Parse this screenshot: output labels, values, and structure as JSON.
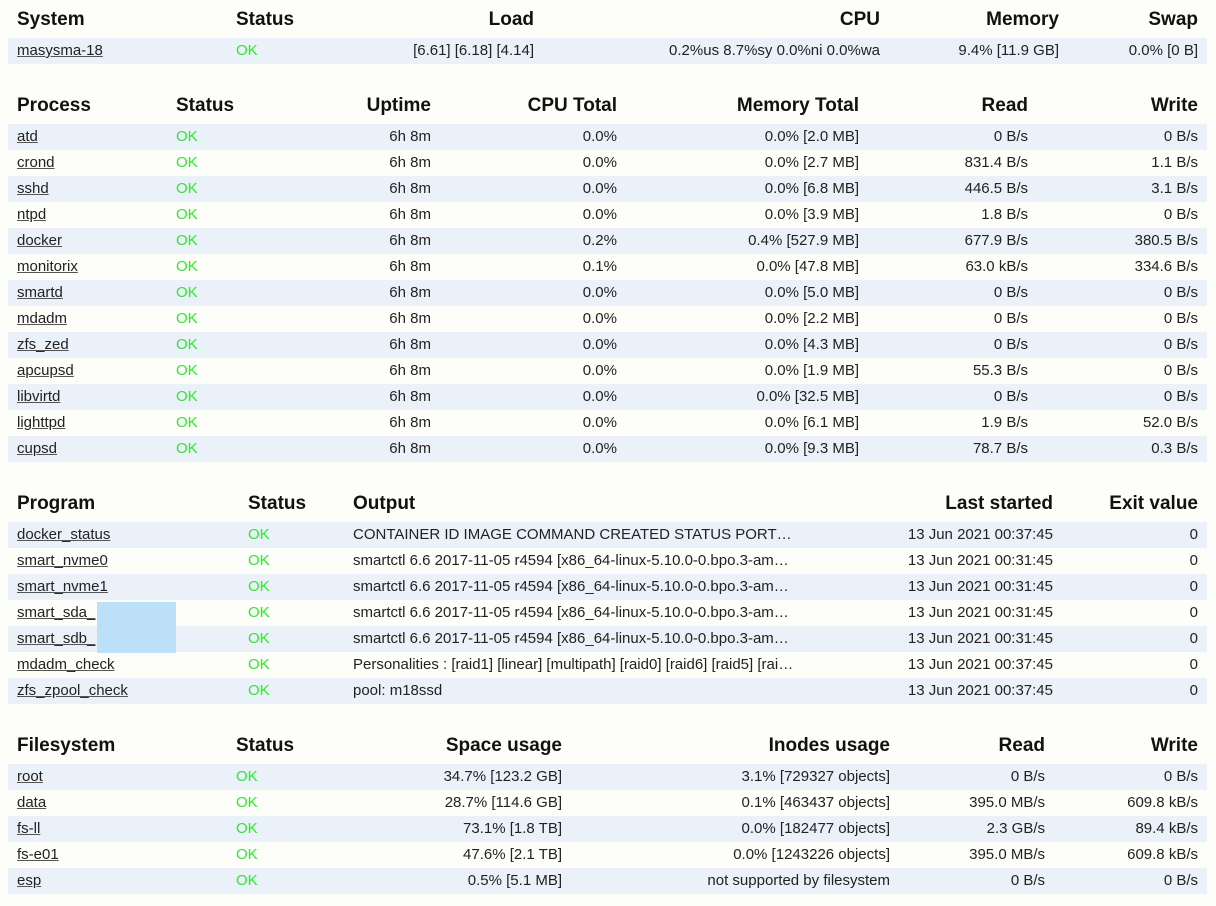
{
  "system": {
    "headers": [
      "System",
      "Status",
      "Load",
      "CPU",
      "Memory",
      "Swap"
    ],
    "row": {
      "name": "masysma-18",
      "status": "OK",
      "load": "[6.61] [6.18] [4.14]",
      "cpu": "0.2%us 8.7%sy 0.0%ni 0.0%wa",
      "memory": "9.4% [11.9 GB]",
      "swap": "0.0% [0 B]"
    }
  },
  "process": {
    "headers": [
      "Process",
      "Status",
      "Uptime",
      "CPU Total",
      "Memory Total",
      "Read",
      "Write"
    ],
    "rows": [
      {
        "name": "atd",
        "status": "OK",
        "uptime": "6h 8m",
        "cpu": "0.0%",
        "memory": "0.0% [2.0 MB]",
        "read": "0 B/s",
        "write": "0 B/s"
      },
      {
        "name": "crond",
        "status": "OK",
        "uptime": "6h 8m",
        "cpu": "0.0%",
        "memory": "0.0% [2.7 MB]",
        "read": "831.4 B/s",
        "write": "1.1 B/s"
      },
      {
        "name": "sshd",
        "status": "OK",
        "uptime": "6h 8m",
        "cpu": "0.0%",
        "memory": "0.0% [6.8 MB]",
        "read": "446.5 B/s",
        "write": "3.1 B/s"
      },
      {
        "name": "ntpd",
        "status": "OK",
        "uptime": "6h 8m",
        "cpu": "0.0%",
        "memory": "0.0% [3.9 MB]",
        "read": "1.8 B/s",
        "write": "0 B/s"
      },
      {
        "name": "docker",
        "status": "OK",
        "uptime": "6h 8m",
        "cpu": "0.2%",
        "memory": "0.4% [527.9 MB]",
        "read": "677.9 B/s",
        "write": "380.5 B/s"
      },
      {
        "name": "monitorix",
        "status": "OK",
        "uptime": "6h 8m",
        "cpu": "0.1%",
        "memory": "0.0% [47.8 MB]",
        "read": "63.0 kB/s",
        "write": "334.6 B/s"
      },
      {
        "name": "smartd",
        "status": "OK",
        "uptime": "6h 8m",
        "cpu": "0.0%",
        "memory": "0.0% [5.0 MB]",
        "read": "0 B/s",
        "write": "0 B/s"
      },
      {
        "name": "mdadm",
        "status": "OK",
        "uptime": "6h 8m",
        "cpu": "0.0%",
        "memory": "0.0% [2.2 MB]",
        "read": "0 B/s",
        "write": "0 B/s"
      },
      {
        "name": "zfs_zed",
        "status": "OK",
        "uptime": "6h 8m",
        "cpu": "0.0%",
        "memory": "0.0% [4.3 MB]",
        "read": "0 B/s",
        "write": "0 B/s"
      },
      {
        "name": "apcupsd",
        "status": "OK",
        "uptime": "6h 8m",
        "cpu": "0.0%",
        "memory": "0.0% [1.9 MB]",
        "read": "55.3 B/s",
        "write": "0 B/s"
      },
      {
        "name": "libvirtd",
        "status": "OK",
        "uptime": "6h 8m",
        "cpu": "0.0%",
        "memory": "0.0% [32.5 MB]",
        "read": "0 B/s",
        "write": "0 B/s"
      },
      {
        "name": "lighttpd",
        "status": "OK",
        "uptime": "6h 8m",
        "cpu": "0.0%",
        "memory": "0.0% [6.1 MB]",
        "read": "1.9 B/s",
        "write": "52.0 B/s"
      },
      {
        "name": "cupsd",
        "status": "OK",
        "uptime": "6h 8m",
        "cpu": "0.0%",
        "memory": "0.0% [9.3 MB]",
        "read": "78.7 B/s",
        "write": "0.3 B/s"
      }
    ]
  },
  "program": {
    "headers": [
      "Program",
      "Status",
      "Output",
      "Last started",
      "Exit value"
    ],
    "rows": [
      {
        "name": "docker_status",
        "status": "OK",
        "output": "CONTAINER ID IMAGE COMMAND CREATED STATUS PORT…",
        "last_started": "13 Jun 2021 00:37:45",
        "exit": "0"
      },
      {
        "name": "smart_nvme0",
        "status": "OK",
        "output": "smartctl 6.6 2017-11-05 r4594 [x86_64-linux-5.10.0-0.bpo.3-am…",
        "last_started": "13 Jun 2021 00:31:45",
        "exit": "0"
      },
      {
        "name": "smart_nvme1",
        "status": "OK",
        "output": "smartctl 6.6 2017-11-05 r4594 [x86_64-linux-5.10.0-0.bpo.3-am…",
        "last_started": "13 Jun 2021 00:31:45",
        "exit": "0"
      },
      {
        "name": "smart_sda_",
        "status": "OK",
        "output": "smartctl 6.6 2017-11-05 r4594 [x86_64-linux-5.10.0-0.bpo.3-am…",
        "last_started": "13 Jun 2021 00:31:45",
        "exit": "0"
      },
      {
        "name": "smart_sdb_",
        "status": "OK",
        "output": "smartctl 6.6 2017-11-05 r4594 [x86_64-linux-5.10.0-0.bpo.3-am…",
        "last_started": "13 Jun 2021 00:31:45",
        "exit": "0"
      },
      {
        "name": "mdadm_check",
        "status": "OK",
        "output": "Personalities : [raid1] [linear] [multipath] [raid0] [raid6] [raid5] [rai…",
        "last_started": "13 Jun 2021 00:37:45",
        "exit": "0"
      },
      {
        "name": "zfs_zpool_check",
        "status": "OK",
        "output": "pool: m18ssd",
        "last_started": "13 Jun 2021 00:37:45",
        "exit": "0"
      }
    ]
  },
  "filesystem": {
    "headers": [
      "Filesystem",
      "Status",
      "Space usage",
      "Inodes usage",
      "Read",
      "Write"
    ],
    "rows": [
      {
        "name": "root",
        "status": "OK",
        "space": "34.7% [123.2 GB]",
        "inodes": "3.1% [729327 objects]",
        "read": "0 B/s",
        "write": "0 B/s"
      },
      {
        "name": "data",
        "status": "OK",
        "space": "28.7% [114.6 GB]",
        "inodes": "0.1% [463437 objects]",
        "read": "395.0 MB/s",
        "write": "609.8 kB/s"
      },
      {
        "name": "fs-ll",
        "status": "OK",
        "space": "73.1% [1.8 TB]",
        "inodes": "0.0% [182477 objects]",
        "read": "2.3 GB/s",
        "write": "89.4 kB/s"
      },
      {
        "name": "fs-e01",
        "status": "OK",
        "space": "47.6% [2.1 TB]",
        "inodes": "0.0% [1243226 objects]",
        "read": "395.0 MB/s",
        "write": "609.8 kB/s"
      },
      {
        "name": "esp",
        "status": "OK",
        "space": "0.5% [5.1 MB]",
        "inodes": "not supported by filesystem",
        "read": "0 B/s",
        "write": "0 B/s"
      }
    ]
  }
}
